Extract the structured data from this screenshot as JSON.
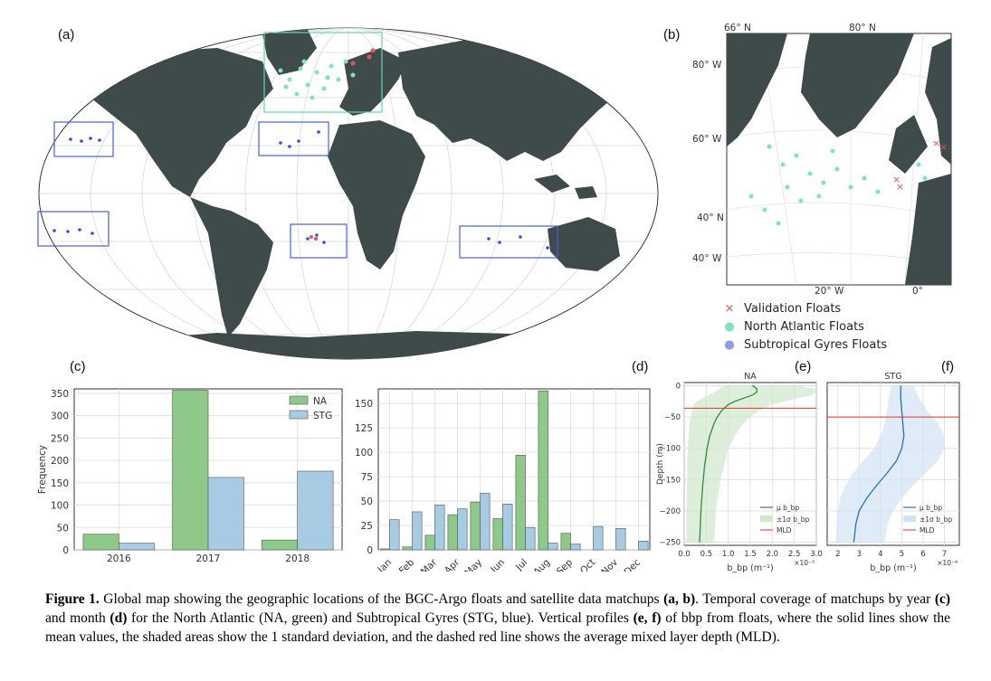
{
  "panels": {
    "a": "(a)",
    "b": "(b)",
    "c": "(c)",
    "d": "(d)",
    "e": "(e)",
    "f": "(f)"
  },
  "map_b": {
    "lon_top": [
      "66° N",
      "80° N"
    ],
    "lat_left": [
      "80° W",
      "60° W",
      "40° N",
      "40° W"
    ],
    "lon_bottom": [
      "20° W",
      "0°"
    ]
  },
  "legend_floats": [
    {
      "marker": "×",
      "label": "Validation Floats",
      "color": "#e05555"
    },
    {
      "marker": "●",
      "label": "North Atlantic Floats",
      "color": "#7fe3bd"
    },
    {
      "marker": "●",
      "label": "Subtropical Gyres Floats",
      "color": "#8c9ae8"
    }
  ],
  "colors": {
    "na": "#8fc98a",
    "stg": "#a6cbe3",
    "na_line": "#2e8b3a",
    "stg_line": "#2a72b5",
    "mld": "#e53030",
    "land": "#3f4a4a"
  },
  "chart_data": [
    {
      "type": "bar",
      "panel": "c",
      "categories": [
        "2016",
        "2017",
        "2018"
      ],
      "series": [
        {
          "name": "NA",
          "values": [
            35,
            357,
            22
          ]
        },
        {
          "name": "STG",
          "values": [
            15,
            162,
            176
          ]
        }
      ],
      "ylabel": "Frequency",
      "ylim": [
        0,
        360
      ],
      "yticks": [
        "0",
        "50",
        "100",
        "150",
        "200",
        "250",
        "300",
        "350"
      ],
      "legend": "top-right",
      "grid": true
    },
    {
      "type": "bar",
      "panel": "d",
      "categories": [
        "Jan",
        "Feb",
        "Mar",
        "Apr",
        "May",
        "Jun",
        "Jul",
        "Aug",
        "Sep",
        "Oct",
        "Nov",
        "Dec"
      ],
      "series": [
        {
          "name": "NA",
          "values": [
            1,
            3,
            15,
            36,
            49,
            32,
            97,
            163,
            17,
            0,
            0,
            0
          ]
        },
        {
          "name": "STG",
          "values": [
            31,
            39,
            46,
            42,
            58,
            47,
            23,
            7,
            6,
            24,
            22,
            9
          ]
        }
      ],
      "ylim": [
        0,
        165
      ],
      "yticks": [
        "0",
        "25",
        "50",
        "75",
        "100",
        "125",
        "150"
      ],
      "grid": true
    },
    {
      "type": "line",
      "panel": "e",
      "title": "NA",
      "xlabel": "b_bp (m⁻¹)",
      "xunit": "×10⁻³",
      "ylabel": "Depth (m)",
      "xlim": [
        0.0,
        3.0
      ],
      "ylim": [
        -255,
        5
      ],
      "xticks": [
        "0.0",
        "0.5",
        "1.0",
        "1.5",
        "2.0",
        "2.5",
        "3.0"
      ],
      "yticks": [
        "0",
        "−50",
        "−100",
        "−150",
        "−200",
        "−250"
      ],
      "mean": {
        "depth": [
          0,
          -5,
          -10,
          -15,
          -20,
          -25,
          -30,
          -40,
          -50,
          -60,
          -80,
          -100,
          -130,
          -160,
          -200,
          -250
        ],
        "value": [
          1.55,
          1.65,
          1.65,
          1.55,
          1.35,
          1.15,
          1.0,
          0.85,
          0.75,
          0.68,
          0.58,
          0.52,
          0.46,
          0.42,
          0.38,
          0.35
        ]
      },
      "sd_lower": [
        0.9,
        0.8,
        0.7,
        0.55,
        0.4,
        0.3,
        0.22,
        0.18,
        0.15,
        0.12,
        0.1,
        0.08,
        0.07,
        0.06,
        0.05,
        0.05
      ],
      "sd_upper": [
        2.6,
        2.95,
        3.0,
        2.9,
        2.6,
        2.3,
        2.0,
        1.7,
        1.5,
        1.35,
        1.15,
        1.0,
        0.9,
        0.8,
        0.72,
        0.68
      ],
      "mld": -36,
      "legend": [
        "μ b_bp",
        "±1σ b_bp",
        "MLD"
      ]
    },
    {
      "type": "line",
      "panel": "f",
      "title": "STG",
      "xlabel": "b_bp (m⁻¹)",
      "xunit": "×10⁻⁴",
      "xlim": [
        1.5,
        7.7
      ],
      "ylim": [
        -255,
        5
      ],
      "xticks": [
        "2",
        "3",
        "4",
        "5",
        "6",
        "7"
      ],
      "mean": {
        "depth": [
          0,
          -20,
          -40,
          -60,
          -80,
          -100,
          -120,
          -140,
          -160,
          -180,
          -200,
          -220,
          -250
        ],
        "value": [
          4.95,
          4.95,
          5.0,
          5.05,
          5.1,
          5.0,
          4.75,
          4.3,
          3.8,
          3.35,
          3.0,
          2.85,
          2.75
        ]
      },
      "sd_lower": [
        4.5,
        4.4,
        4.3,
        4.2,
        4.0,
        3.7,
        3.2,
        2.7,
        2.35,
        2.1,
        2.0,
        1.95,
        1.9
      ],
      "sd_upper": [
        5.55,
        5.8,
        6.2,
        6.7,
        7.0,
        7.0,
        6.7,
        6.1,
        5.5,
        5.0,
        4.6,
        4.35,
        4.2
      ],
      "mld": -50,
      "legend": [
        "μ b_bp",
        "±1σ b_bp",
        "MLD"
      ]
    }
  ],
  "caption": {
    "fig": "Figure 1.",
    "t1": " Global map showing the geographic locations of the BGC-Argo floats and satellite data matchups ",
    "ab": "(a, b)",
    "t2": ". Temporal coverage of matchups by year ",
    "c": "(c)",
    "t3": " and month ",
    "d": "(d)",
    "t4": " for the North Atlantic (NA, green) and Subtropical Gyres (STG, blue). Vertical profiles ",
    "ef": "(e, f)",
    "t5": " of bbp from floats, where the solid lines show the mean values, the shaded areas show the 1 standard deviation, and the dashed red line shows the average mixed layer depth (MLD)."
  }
}
